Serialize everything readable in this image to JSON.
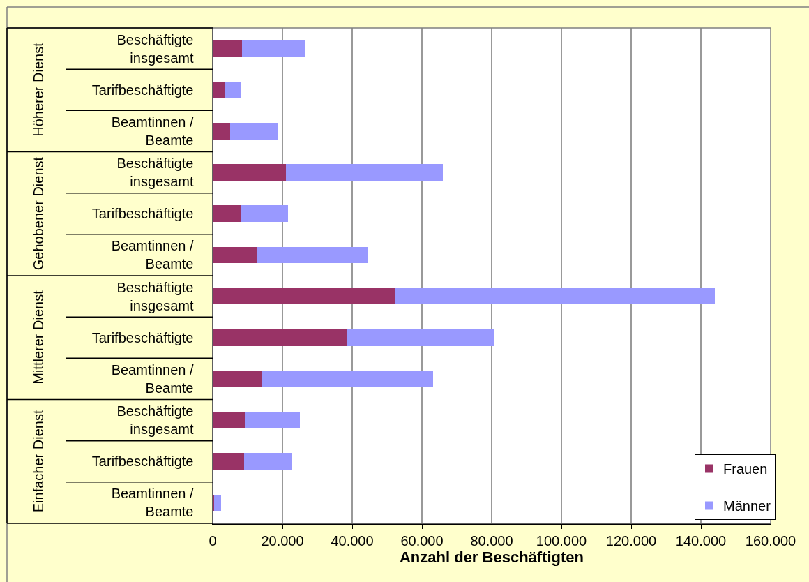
{
  "chart_data": {
    "type": "bar",
    "orientation": "horizontal",
    "stacked": true,
    "categories": [
      "Beschäftigte insgesamt",
      "Tarifbeschäftigte",
      "Beamtinnen / Beamte",
      "Beschäftigte insgesamt",
      "Tarifbeschäftigte",
      "Beamtinnen / Beamte",
      "Beschäftigte insgesamt",
      "Tarifbeschäftigte",
      "Beamtinnen / Beamte",
      "Beschäftigte insgesamt",
      "Tarifbeschäftigte",
      "Beamtinnen / Beamte"
    ],
    "annotations": [
      "Höherer Dienst",
      "Gehobener Dienst",
      "Mittlerer Dienst",
      "Einfacher Dienst"
    ],
    "xlabel": "Anzahl der Beschäftigten",
    "series": [
      {
        "name": "Frauen",
        "color": "#993366",
        "values": [
          8400,
          3300,
          5000,
          21000,
          8200,
          12800,
          52200,
          38400,
          13900,
          9400,
          8900,
          300
        ]
      },
      {
        "name": "Männer",
        "color": "#9999ff",
        "values": [
          17900,
          4600,
          13500,
          44900,
          13300,
          31600,
          91800,
          42300,
          49300,
          15600,
          13800,
          2000
        ]
      }
    ],
    "xlim": [
      0,
      160000
    ],
    "xticks": [
      0,
      {
        "value": 20000,
        "label": "20.000"
      },
      {
        "value": 40000,
        "label": "40.000"
      },
      {
        "value": 60000,
        "label": "60.000"
      },
      {
        "value": 80000,
        "label": "80.000"
      },
      {
        "value": 100000,
        "label": "100.000"
      },
      {
        "value": 120000,
        "label": "120.000"
      },
      {
        "value": 140000,
        "label": "140.000"
      },
      {
        "value": 160000,
        "label": "160.000"
      }
    ],
    "grid": "x",
    "legend": "bottom right"
  }
}
